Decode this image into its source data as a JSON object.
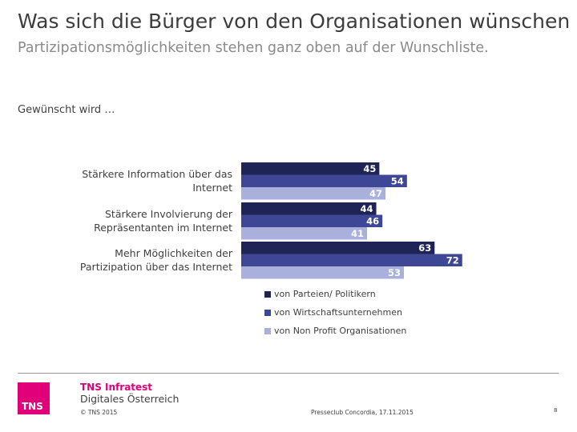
{
  "header": {
    "title": "Was sich die Bürger von den Organisationen wünschen",
    "subtitle": "Partizipationsmöglichkeiten stehen ganz oben auf der Wunschliste."
  },
  "intro_label": "Gewünscht wird …",
  "chart_data": {
    "type": "bar",
    "orientation": "horizontal",
    "categories": [
      "Stärkere Information über das Internet",
      "Stärkere Involvierung der Repräsentanten im Internet",
      "Mehr Möglichkeiten der Partizipation über das Internet"
    ],
    "category_lines": [
      [
        "Stärkere Information über das",
        "Internet"
      ],
      [
        "Stärkere Involvierung der",
        "Repräsentanten im Internet"
      ],
      [
        "Mehr Möglichkeiten der",
        "Partizipation über das Internet"
      ]
    ],
    "series": [
      {
        "name": "von Parteien/ Politikern",
        "color": "#1f2456",
        "values": [
          45,
          44,
          63
        ]
      },
      {
        "name": "von Wirtschaftsunternehmen",
        "color": "#3e4796",
        "values": [
          54,
          46,
          72
        ]
      },
      {
        "name": "von Non Profit Organisationen",
        "color": "#a9b0dc",
        "values": [
          47,
          41,
          53
        ]
      }
    ],
    "xlim": [
      0,
      100
    ],
    "legend_position": "bottom",
    "data_labels": true
  },
  "footer": {
    "logo_text": "TNS",
    "brand": "TNS Infratest",
    "brand_sub": "Digitales Österreich",
    "copyright": "© TNS 2015",
    "event": "Presseclub Concordia, 17.11.2015",
    "page_number": "8"
  }
}
